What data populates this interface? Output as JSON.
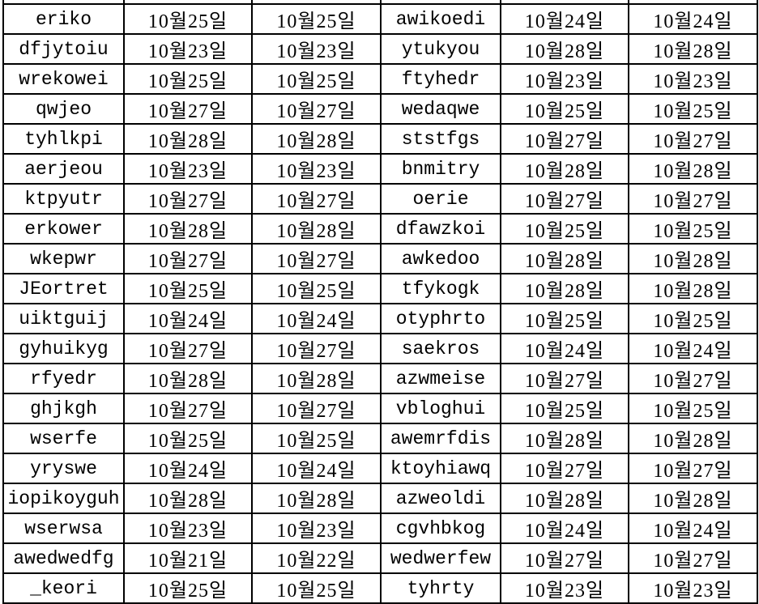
{
  "rows": [
    [
      "eriko",
      "10월25일",
      "10월25일",
      "awikoedi",
      "10월24일",
      "10월24일"
    ],
    [
      "dfjytoiu",
      "10월23일",
      "10월23일",
      "ytukyou",
      "10월28일",
      "10월28일"
    ],
    [
      "wrekowei",
      "10월25일",
      "10월25일",
      "ftyhedr",
      "10월23일",
      "10월23일"
    ],
    [
      "qwjeo",
      "10월27일",
      "10월27일",
      "wedaqwe",
      "10월25일",
      "10월25일"
    ],
    [
      "tyhlkpi",
      "10월28일",
      "10월28일",
      "ststfgs",
      "10월27일",
      "10월27일"
    ],
    [
      "aerjeou",
      "10월23일",
      "10월23일",
      "bnmitry",
      "10월28일",
      "10월28일"
    ],
    [
      "ktpyutr",
      "10월27일",
      "10월27일",
      "oerie",
      "10월27일",
      "10월27일"
    ],
    [
      "erkower",
      "10월28일",
      "10월28일",
      "dfawzkoi",
      "10월25일",
      "10월25일"
    ],
    [
      "wkepwr",
      "10월27일",
      "10월27일",
      "awkedoo",
      "10월28일",
      "10월28일"
    ],
    [
      "JEortret",
      "10월25일",
      "10월25일",
      "tfykogk",
      "10월28일",
      "10월28일"
    ],
    [
      "uiktguij",
      "10월24일",
      "10월24일",
      "otyphrto",
      "10월25일",
      "10월25일"
    ],
    [
      "gyhuikyg",
      "10월27일",
      "10월27일",
      "saekros",
      "10월24일",
      "10월24일"
    ],
    [
      "rfyedr",
      "10월28일",
      "10월28일",
      "azwmeise",
      "10월27일",
      "10월27일"
    ],
    [
      "ghjkgh",
      "10월27일",
      "10월27일",
      "vbloghui",
      "10월25일",
      "10월25일"
    ],
    [
      "wserfe",
      "10월25일",
      "10월25일",
      "awemrfdis",
      "10월28일",
      "10월28일"
    ],
    [
      "yryswe",
      "10월24일",
      "10월24일",
      "ktoyhiawq",
      "10월27일",
      "10월27일"
    ],
    [
      "iopikoyguh",
      "10월28일",
      "10월28일",
      "azweoldi",
      "10월28일",
      "10월28일"
    ],
    [
      "wserwsa",
      "10월23일",
      "10월23일",
      "cgvhbkog",
      "10월24일",
      "10월24일"
    ],
    [
      "awedwedfg",
      "10월21일",
      "10월22일",
      "wedwerfew",
      "10월27일",
      "10월27일"
    ],
    [
      "_keori",
      "10월25일",
      "10월25일",
      "tyhrty",
      "10월23일",
      "10월23일"
    ]
  ]
}
